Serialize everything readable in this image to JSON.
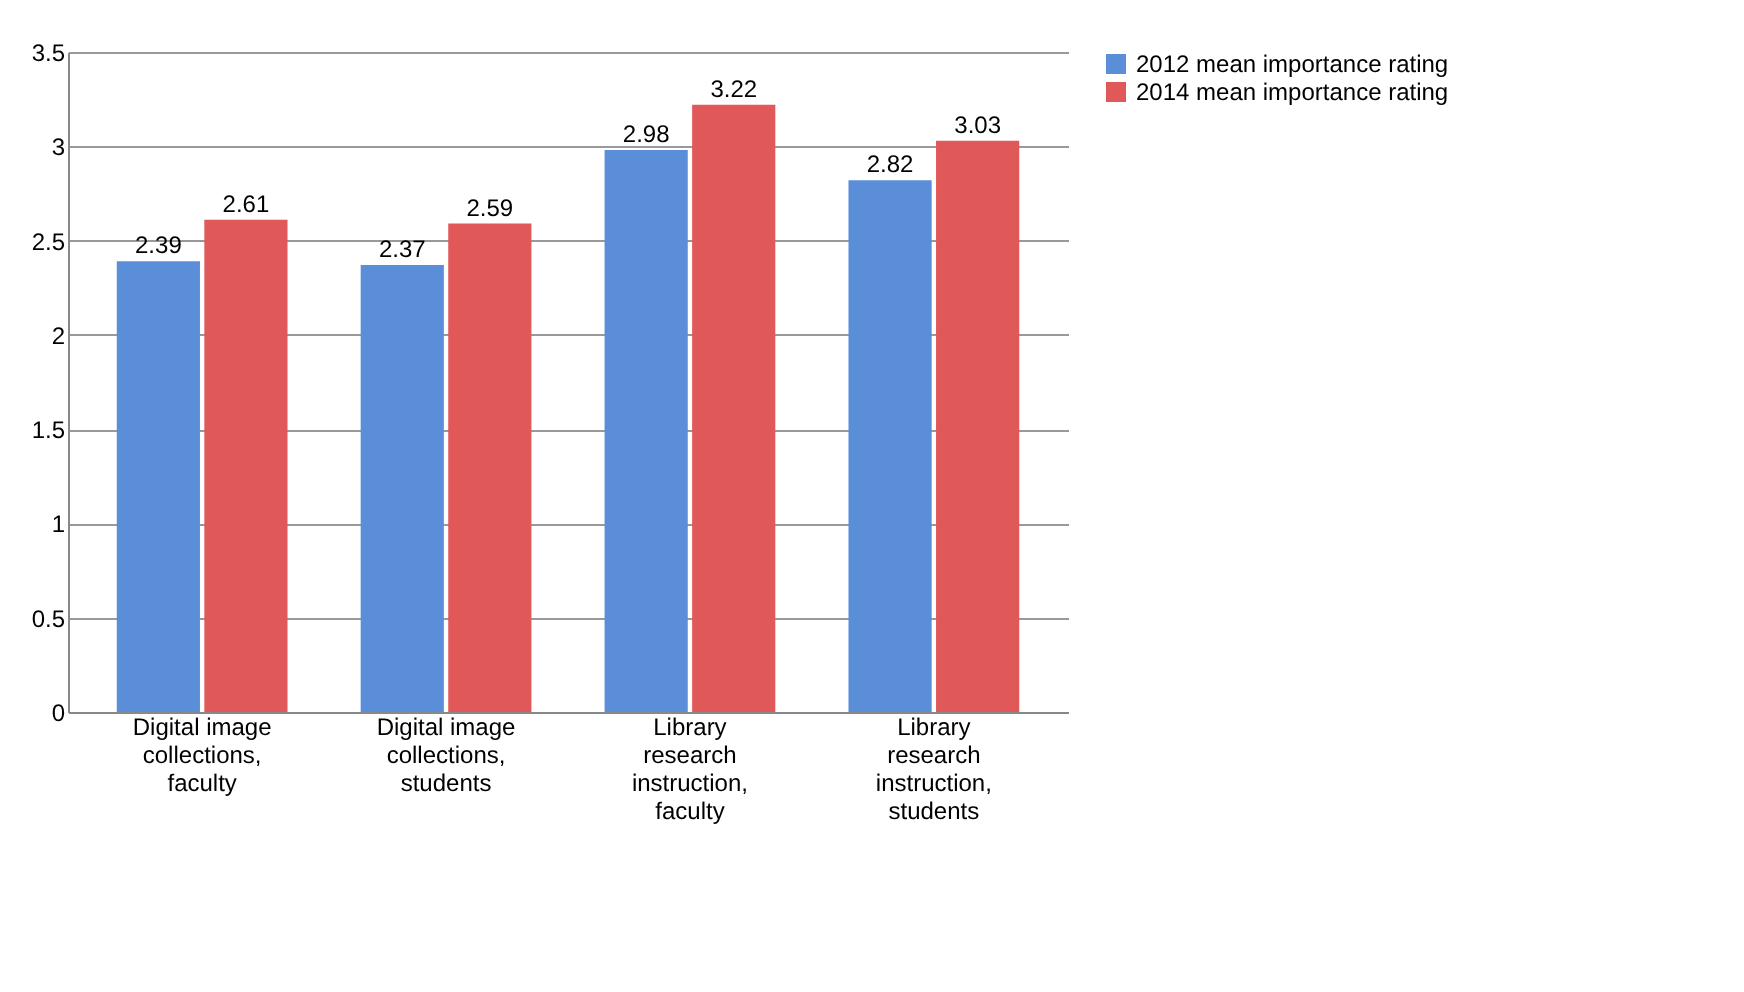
{
  "chart_data": {
    "type": "bar",
    "categories": [
      "Digital image collections, faculty",
      "Digital image collections, students",
      "Library research instruction, faculty",
      "Library research instruction, students"
    ],
    "series": [
      {
        "name": "2012 mean importance rating",
        "color": "#5b8ed8",
        "values": [
          2.39,
          2.37,
          2.98,
          2.82
        ]
      },
      {
        "name": "2014 mean importance rating",
        "color": "#e05858",
        "values": [
          2.61,
          2.59,
          3.22,
          3.03
        ]
      }
    ],
    "ylim": [
      0,
      3.5
    ],
    "yticks": [
      0,
      0.5,
      1,
      1.5,
      2,
      2.5,
      3,
      3.5
    ],
    "grid": "y",
    "legend": "right",
    "data_labels": true
  }
}
